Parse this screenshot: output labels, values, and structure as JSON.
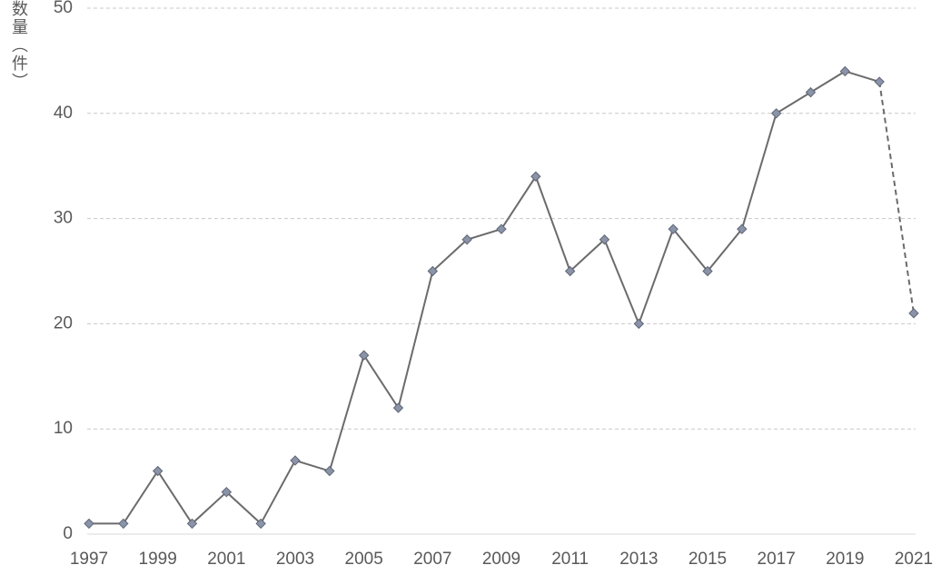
{
  "chart_data": {
    "type": "line",
    "y_label": "数量（件）",
    "x": [
      1997,
      1998,
      1999,
      2000,
      2001,
      2002,
      2003,
      2004,
      2005,
      2006,
      2007,
      2008,
      2009,
      2010,
      2011,
      2012,
      2013,
      2014,
      2015,
      2016,
      2017,
      2018,
      2019,
      2020,
      2021
    ],
    "series": [
      {
        "color": "#6b6b6b",
        "marker_color": "#8a93a8",
        "dashed_after": 2020,
        "values": [
          1,
          1,
          6,
          1,
          4,
          1,
          7,
          6,
          17,
          12,
          25,
          28,
          29,
          34,
          25,
          28,
          20,
          29,
          25,
          29,
          40,
          42,
          44,
          43,
          21
        ]
      }
    ],
    "xlim": [
      1997,
      2021
    ],
    "xticks": [
      1997,
      1999,
      2001,
      2003,
      2005,
      2007,
      2009,
      2011,
      2013,
      2015,
      2017,
      2019,
      2021
    ],
    "ylim": [
      0,
      50
    ],
    "yticks": [
      0,
      10,
      20,
      30,
      40,
      50
    ],
    "grid": true
  }
}
